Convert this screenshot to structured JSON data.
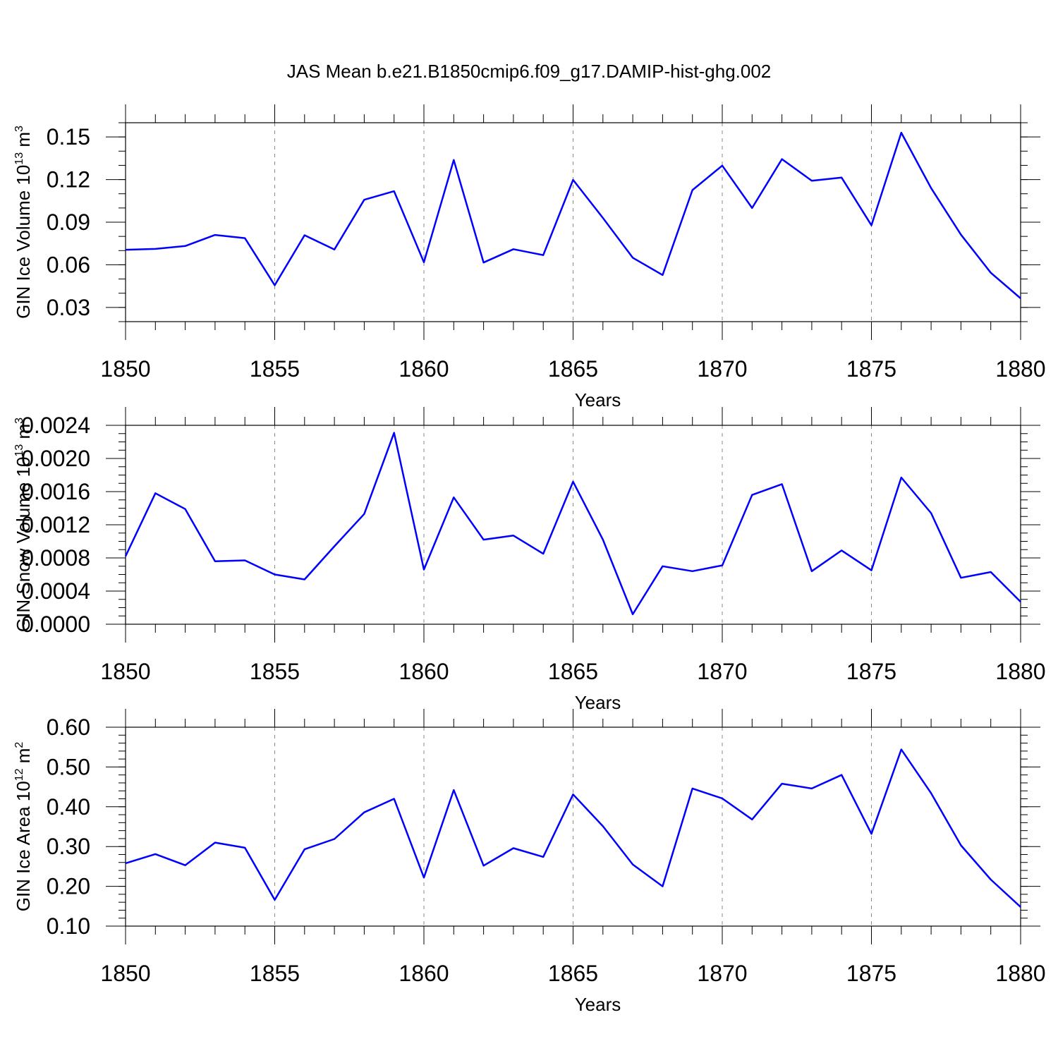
{
  "title": "JAS Mean b.e21.B1850cmip6.f09_g17.DAMIP-hist-ghg.002",
  "chart_data": [
    {
      "type": "line",
      "ylabel": "GIN Ice Volume 10",
      "ylabel_sup": "13",
      "ylabel_unit": " m",
      "ylabel_unit_sup": "3",
      "xlabel": "Years",
      "xlim": [
        1850,
        1880
      ],
      "ylim": [
        0.02,
        0.16
      ],
      "x_ticks": [
        "1850",
        "1855",
        "1860",
        "1865",
        "1870",
        "1875",
        "1880"
      ],
      "y_ticks": [
        "0.03",
        "0.06",
        "0.09",
        "0.12",
        "0.15"
      ],
      "y_tick_values": [
        0.03,
        0.06,
        0.09,
        0.12,
        0.15
      ],
      "y_minor_step": 0.01,
      "grid": "vertical dashed at major x ticks",
      "series_color": "#0000ff",
      "x": [
        1850,
        1851,
        1852,
        1853,
        1854,
        1855,
        1856,
        1857,
        1858,
        1859,
        1860,
        1861,
        1862,
        1863,
        1864,
        1865,
        1866,
        1867,
        1868,
        1869,
        1870,
        1871,
        1872,
        1873,
        1874,
        1875,
        1876,
        1877,
        1878,
        1879,
        1880
      ],
      "values": [
        0.0706,
        0.0712,
        0.0732,
        0.081,
        0.0788,
        0.0456,
        0.0808,
        0.0708,
        0.1058,
        0.1118,
        0.0618,
        0.1338,
        0.0616,
        0.071,
        0.0668,
        0.1198,
        0.093,
        0.065,
        0.0528,
        0.1126,
        0.1298,
        0.1,
        0.1344,
        0.1192,
        0.1214,
        0.0878,
        0.153,
        0.114,
        0.0812,
        0.0544,
        0.0364
      ]
    },
    {
      "type": "line",
      "ylabel": "GIN Snow Volume 10",
      "ylabel_sup": "13",
      "ylabel_unit": " m",
      "ylabel_unit_sup": "3",
      "xlabel": "Years",
      "xlim": [
        1850,
        1880
      ],
      "ylim": [
        0.0,
        0.0024
      ],
      "x_ticks": [
        "1850",
        "1855",
        "1860",
        "1865",
        "1870",
        "1875",
        "1880"
      ],
      "y_ticks": [
        "0.0000",
        "0.0004",
        "0.0008",
        "0.0012",
        "0.0016",
        "0.0020",
        "0.0024"
      ],
      "y_tick_values": [
        0.0,
        0.0004,
        0.0008,
        0.0012,
        0.0016,
        0.002,
        0.0024
      ],
      "y_minor_step": 0.0001,
      "grid": "vertical dashed at major x ticks",
      "series_color": "#0000ff",
      "x": [
        1850,
        1851,
        1852,
        1853,
        1854,
        1855,
        1856,
        1857,
        1858,
        1859,
        1860,
        1861,
        1862,
        1863,
        1864,
        1865,
        1866,
        1867,
        1868,
        1869,
        1870,
        1871,
        1872,
        1873,
        1874,
        1875,
        1876,
        1877,
        1878,
        1879,
        1880
      ],
      "values": [
        0.00082,
        0.00158,
        0.00139,
        0.00076,
        0.00077,
        0.0006,
        0.00054,
        0.00094,
        0.00133,
        0.00231,
        0.00066,
        0.00153,
        0.00102,
        0.00107,
        0.00085,
        0.00172,
        0.00102,
        0.00012,
        0.0007,
        0.00064,
        0.00071,
        0.00156,
        0.00169,
        0.00064,
        0.00089,
        0.00065,
        0.00177,
        0.00134,
        0.00056,
        0.00063,
        0.00027
      ]
    },
    {
      "type": "line",
      "ylabel": "GIN Ice Area 10",
      "ylabel_sup": "12",
      "ylabel_unit": " m",
      "ylabel_unit_sup": "2",
      "xlabel": "Years",
      "xlim": [
        1850,
        1880
      ],
      "ylim": [
        0.1,
        0.6
      ],
      "x_ticks": [
        "1850",
        "1855",
        "1860",
        "1865",
        "1870",
        "1875",
        "1880"
      ],
      "y_ticks": [
        "0.10",
        "0.20",
        "0.30",
        "0.40",
        "0.50",
        "0.60"
      ],
      "y_tick_values": [
        0.1,
        0.2,
        0.3,
        0.4,
        0.5,
        0.6
      ],
      "y_minor_step": 0.02,
      "grid": "vertical dashed at major x ticks",
      "series_color": "#0000ff",
      "x": [
        1850,
        1851,
        1852,
        1853,
        1854,
        1855,
        1856,
        1857,
        1858,
        1859,
        1860,
        1861,
        1862,
        1863,
        1864,
        1865,
        1866,
        1867,
        1868,
        1869,
        1870,
        1871,
        1872,
        1873,
        1874,
        1875,
        1876,
        1877,
        1878,
        1879,
        1880
      ],
      "values": [
        0.258,
        0.281,
        0.253,
        0.31,
        0.297,
        0.166,
        0.293,
        0.319,
        0.386,
        0.42,
        0.222,
        0.442,
        0.252,
        0.296,
        0.274,
        0.431,
        0.351,
        0.255,
        0.2,
        0.446,
        0.421,
        0.368,
        0.458,
        0.446,
        0.48,
        0.332,
        0.544,
        0.434,
        0.303,
        0.217,
        0.148
      ]
    }
  ]
}
